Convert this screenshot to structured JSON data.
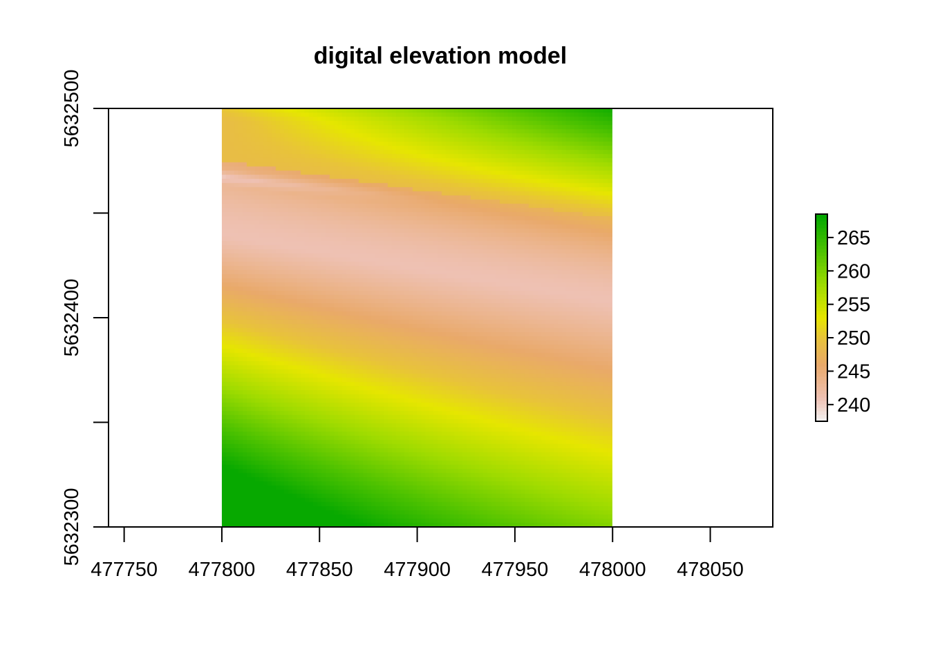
{
  "chart_data": {
    "type": "heatmap",
    "title": "digital elevation model",
    "xlabel": "",
    "ylabel": "",
    "x_ticks": [
      477750,
      477800,
      477850,
      477900,
      477950,
      478000,
      478050
    ],
    "y_ticks": [
      5632300,
      5632400,
      5632500
    ],
    "y_minor_ticks": [
      5632350,
      5632450
    ],
    "xlim": [
      477742,
      478082
    ],
    "ylim": [
      5632300,
      5632500
    ],
    "raster_extent": {
      "xmin": 477800,
      "xmax": 478000,
      "ymin": 5632300,
      "ymax": 5632500
    },
    "value_range": [
      237.5,
      268.5
    ],
    "legend": {
      "position": "right",
      "ticks": [
        240,
        245,
        250,
        255,
        260,
        265
      ]
    },
    "color_stops": [
      {
        "value": 237.5,
        "color": "#f2f2f2"
      },
      {
        "value": 241,
        "color": "#eec1b3"
      },
      {
        "value": 246,
        "color": "#e9a96a"
      },
      {
        "value": 250,
        "color": "#e8c33a"
      },
      {
        "value": 253,
        "color": "#e6e600"
      },
      {
        "value": 258,
        "color": "#9edb00"
      },
      {
        "value": 263,
        "color": "#4dc200"
      },
      {
        "value": 268.5,
        "color": "#00a600"
      }
    ]
  }
}
